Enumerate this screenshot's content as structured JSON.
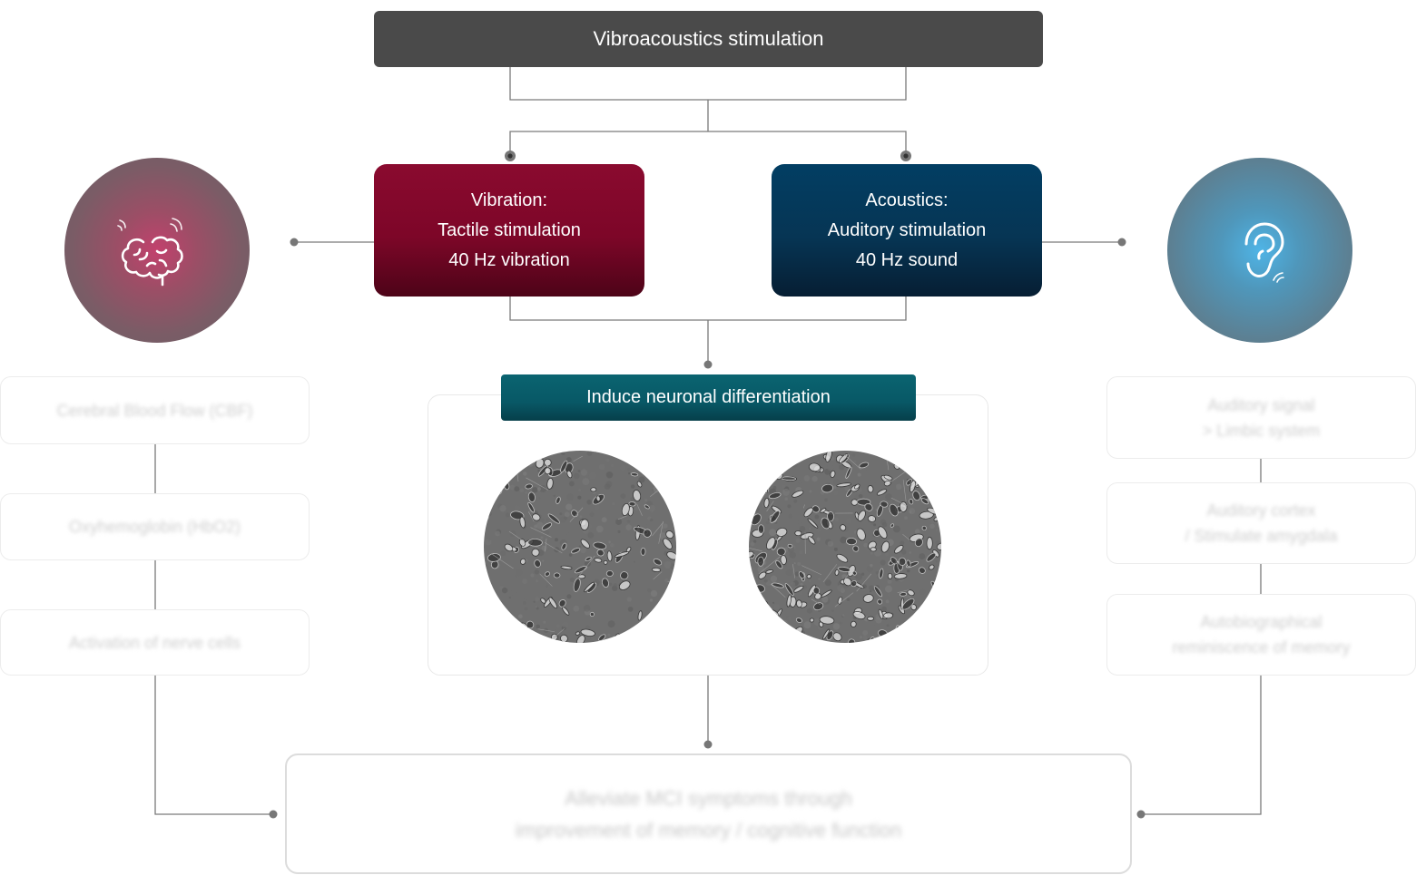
{
  "title": "Vibroacoustics stimulation",
  "vibration": {
    "line1": "Vibration:",
    "line2": "Tactile stimulation",
    "line3": "40 Hz vibration"
  },
  "acoustics": {
    "line1": "Acoustics:",
    "line2": "Auditory stimulation",
    "line3": "40 Hz sound"
  },
  "left_icon": "brain-icon",
  "right_icon": "ear-icon",
  "left_steps": [
    "Cerebral Blood Flow (CBF)",
    "Oxyhemoglobin (HbO2)",
    "Activation of nerve cells"
  ],
  "right_steps": [
    {
      "line1": "Auditory signal",
      "line2": "> Limbic system"
    },
    {
      "line1": "Auditory cortex",
      "line2": "/ Stimulate amygdala"
    },
    {
      "line1": "Autobiographical",
      "line2": "reminiscence of memory"
    }
  ],
  "center": {
    "label": "Induce neuronal differentiation"
  },
  "outcome": {
    "line1": "Alleviate MCI symptoms through",
    "line2": "improvement of memory / cognitive function"
  },
  "colors": {
    "title_bg": "#4a4a4a",
    "vibration": "#7d0628",
    "acoustics": "#063554",
    "neuron_bar": "#085866",
    "connector": "#777777"
  }
}
